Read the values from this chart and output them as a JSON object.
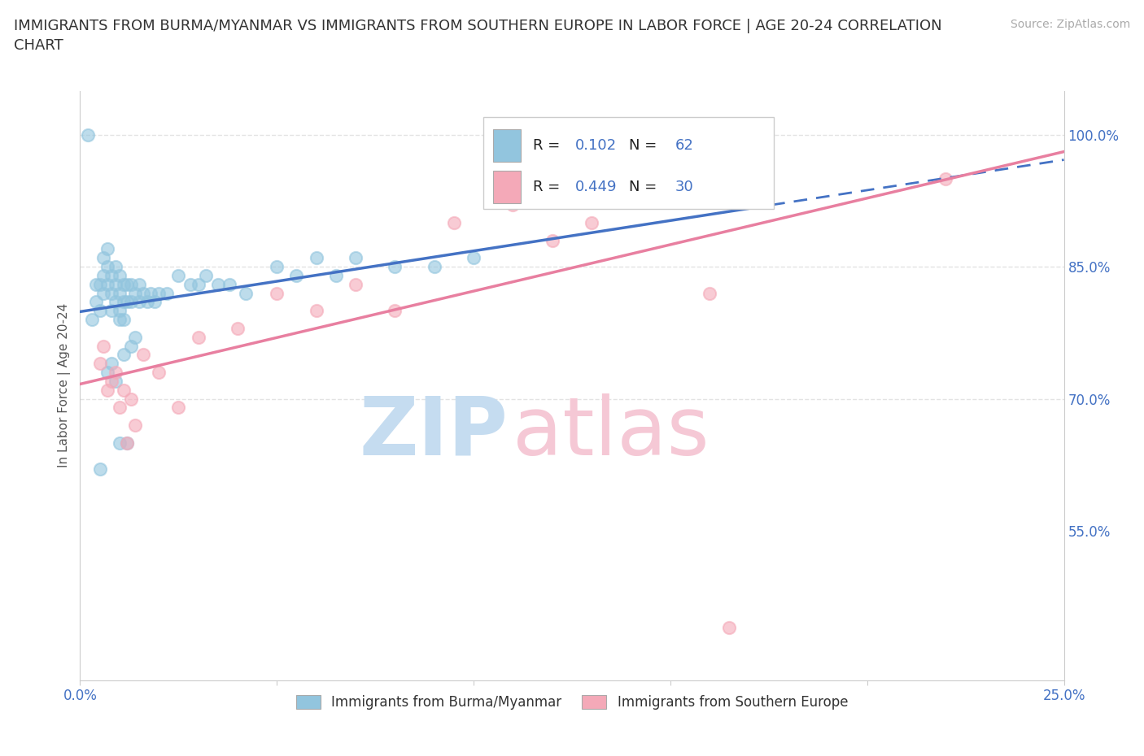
{
  "title": "IMMIGRANTS FROM BURMA/MYANMAR VS IMMIGRANTS FROM SOUTHERN EUROPE IN LABOR FORCE | AGE 20-24 CORRELATION\nCHART",
  "source": "Source: ZipAtlas.com",
  "ylabel": "In Labor Force | Age 20-24",
  "xlim": [
    0.0,
    0.25
  ],
  "ylim": [
    0.38,
    1.05
  ],
  "color_blue": "#92C5DE",
  "color_pink": "#F4A9B8",
  "line_blue": "#4472C4",
  "line_pink": "#E87FA0",
  "legend_R1": "0.102",
  "legend_N1": "62",
  "legend_R2": "0.449",
  "legend_N2": "30",
  "r_n_color": "#4472C4",
  "background_color": "#ffffff",
  "grid_color": "#dddddd",
  "axis_label_color": "#4472C4",
  "ylabel_color": "#555555",
  "blue_x": [
    0.002,
    0.004,
    0.004,
    0.005,
    0.005,
    0.006,
    0.006,
    0.006,
    0.007,
    0.007,
    0.007,
    0.008,
    0.008,
    0.008,
    0.009,
    0.009,
    0.009,
    0.01,
    0.01,
    0.01,
    0.01,
    0.011,
    0.011,
    0.011,
    0.012,
    0.012,
    0.013,
    0.013,
    0.014,
    0.015,
    0.015,
    0.016,
    0.017,
    0.018,
    0.019,
    0.02,
    0.022,
    0.025,
    0.028,
    0.03,
    0.032,
    0.035,
    0.038,
    0.042,
    0.05,
    0.055,
    0.06,
    0.065,
    0.07,
    0.08,
    0.09,
    0.1,
    0.003,
    0.005,
    0.007,
    0.008,
    0.009,
    0.01,
    0.011,
    0.012,
    0.013,
    0.014
  ],
  "blue_y": [
    1.0,
    0.83,
    0.81,
    0.83,
    0.8,
    0.86,
    0.84,
    0.82,
    0.87,
    0.85,
    0.83,
    0.84,
    0.82,
    0.8,
    0.85,
    0.83,
    0.81,
    0.84,
    0.82,
    0.8,
    0.79,
    0.83,
    0.81,
    0.79,
    0.83,
    0.81,
    0.83,
    0.81,
    0.82,
    0.83,
    0.81,
    0.82,
    0.81,
    0.82,
    0.81,
    0.82,
    0.82,
    0.84,
    0.83,
    0.83,
    0.84,
    0.83,
    0.83,
    0.82,
    0.85,
    0.84,
    0.86,
    0.84,
    0.86,
    0.85,
    0.85,
    0.86,
    0.79,
    0.62,
    0.73,
    0.74,
    0.72,
    0.65,
    0.75,
    0.65,
    0.76,
    0.77
  ],
  "pink_x": [
    0.005,
    0.006,
    0.007,
    0.008,
    0.009,
    0.01,
    0.011,
    0.012,
    0.013,
    0.014,
    0.016,
    0.02,
    0.025,
    0.03,
    0.04,
    0.05,
    0.06,
    0.07,
    0.08,
    0.095,
    0.11,
    0.12,
    0.13,
    0.14,
    0.15,
    0.155,
    0.16,
    0.165,
    0.17,
    0.22
  ],
  "pink_y": [
    0.74,
    0.76,
    0.71,
    0.72,
    0.73,
    0.69,
    0.71,
    0.65,
    0.7,
    0.67,
    0.75,
    0.73,
    0.69,
    0.77,
    0.78,
    0.82,
    0.8,
    0.83,
    0.8,
    0.9,
    0.92,
    0.88,
    0.9,
    0.95,
    0.96,
    0.97,
    0.82,
    0.44,
    0.98,
    0.95
  ],
  "blue_line_solid_end": 0.17,
  "watermark_zip_color": "#C5DCF0",
  "watermark_atlas_color": "#F5C8D5"
}
